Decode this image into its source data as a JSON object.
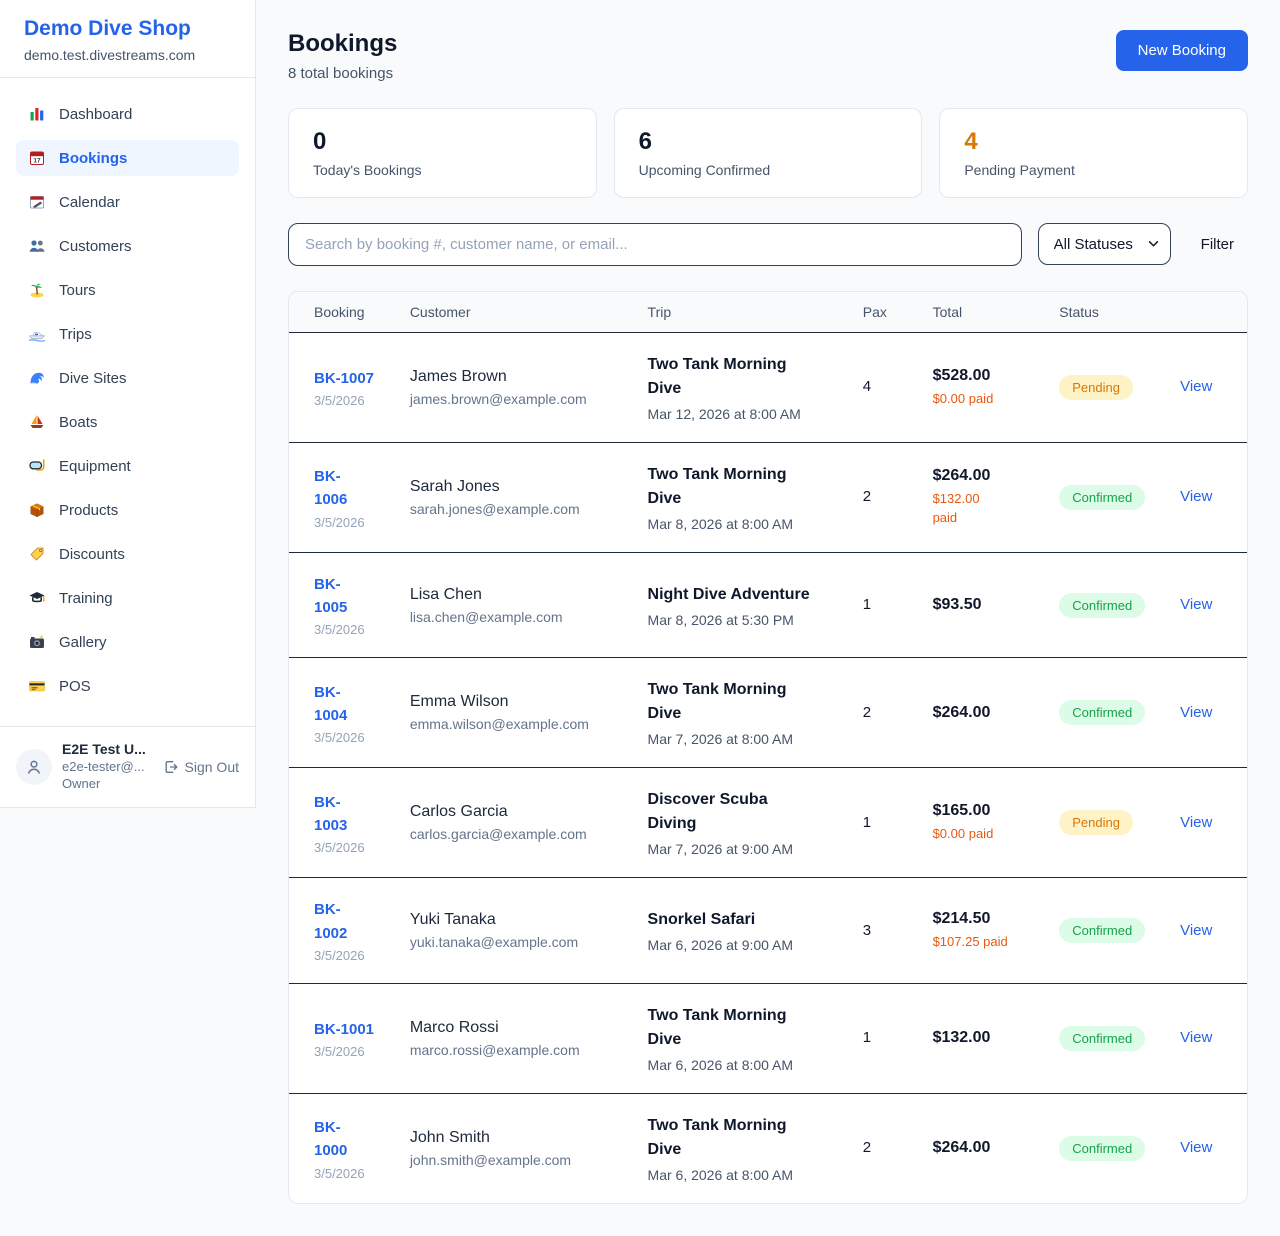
{
  "sidebar": {
    "brand": {
      "name": "Demo Dive Shop",
      "domain": "demo.test.divestreams.com"
    },
    "items": [
      {
        "label": "Dashboard",
        "icon": "bar-chart-icon",
        "active": false
      },
      {
        "label": "Bookings",
        "icon": "calendar-date-icon",
        "active": true
      },
      {
        "label": "Calendar",
        "icon": "calendar-icon",
        "active": false
      },
      {
        "label": "Customers",
        "icon": "people-icon",
        "active": false
      },
      {
        "label": "Tours",
        "icon": "island-icon",
        "active": false
      },
      {
        "label": "Trips",
        "icon": "speedboat-icon",
        "active": false
      },
      {
        "label": "Dive Sites",
        "icon": "wave-icon",
        "active": false
      },
      {
        "label": "Boats",
        "icon": "sailboat-icon",
        "active": false
      },
      {
        "label": "Equipment",
        "icon": "diving-mask-icon",
        "active": false
      },
      {
        "label": "Products",
        "icon": "package-icon",
        "active": false
      },
      {
        "label": "Discounts",
        "icon": "tag-icon",
        "active": false
      },
      {
        "label": "Training",
        "icon": "graduation-cap-icon",
        "active": false
      },
      {
        "label": "Gallery",
        "icon": "camera-icon",
        "active": false
      },
      {
        "label": "POS",
        "icon": "credit-card-icon",
        "active": false
      }
    ],
    "user": {
      "name": "E2E Test U...",
      "email": "e2e-tester@...",
      "role": "Owner",
      "signout_label": "Sign Out"
    }
  },
  "header": {
    "title": "Bookings",
    "subtitle": "8 total bookings",
    "new_booking_label": "New Booking"
  },
  "stats": [
    {
      "value": "0",
      "label": "Today's Bookings",
      "color": "#0f172a"
    },
    {
      "value": "6",
      "label": "Upcoming Confirmed",
      "color": "#0f172a"
    },
    {
      "value": "4",
      "label": "Pending Payment",
      "color": "#d97706"
    }
  ],
  "controls": {
    "search_placeholder": "Search by booking #, customer name, or email...",
    "status_filter_value": "All Statuses",
    "filter_label": "Filter"
  },
  "table": {
    "columns": [
      "Booking",
      "Customer",
      "Trip",
      "Pax",
      "Total",
      "Status",
      ""
    ],
    "rows": [
      {
        "id": "BK-1007",
        "date": "3/5/2026",
        "customer": "James Brown",
        "email": "james.brown@example.com",
        "trip": "Two Tank Morning\nDive",
        "trip_date": "Mar 12, 2026 at 8:00 AM",
        "pax": "4",
        "total": "$528.00",
        "paid": "$0.00 paid",
        "status": "Pending",
        "action": "View"
      },
      {
        "id": "BK-\n1006",
        "date": "3/5/2026",
        "customer": "Sarah Jones",
        "email": "sarah.jones@example.com",
        "trip": "Two Tank Morning\nDive",
        "trip_date": "Mar 8, 2026 at 8:00 AM",
        "pax": "2",
        "total": "$264.00",
        "paid": "$132.00\npaid",
        "status": "Confirmed",
        "action": "View"
      },
      {
        "id": "BK-\n1005",
        "date": "3/5/2026",
        "customer": "Lisa Chen",
        "email": "lisa.chen@example.com",
        "trip": "Night Dive Adventure",
        "trip_date": "Mar 8, 2026 at 5:30 PM",
        "pax": "1",
        "total": "$93.50",
        "paid": "",
        "status": "Confirmed",
        "action": "View"
      },
      {
        "id": "BK-\n1004",
        "date": "3/5/2026",
        "customer": "Emma Wilson",
        "email": "emma.wilson@example.com",
        "trip": "Two Tank Morning\nDive",
        "trip_date": "Mar 7, 2026 at 8:00 AM",
        "pax": "2",
        "total": "$264.00",
        "paid": "",
        "status": "Confirmed",
        "action": "View"
      },
      {
        "id": "BK-\n1003",
        "date": "3/5/2026",
        "customer": "Carlos Garcia",
        "email": "carlos.garcia@example.com",
        "trip": "Discover Scuba\nDiving",
        "trip_date": "Mar 7, 2026 at 9:00 AM",
        "pax": "1",
        "total": "$165.00",
        "paid": "$0.00 paid",
        "status": "Pending",
        "action": "View"
      },
      {
        "id": "BK-\n1002",
        "date": "3/5/2026",
        "customer": "Yuki Tanaka",
        "email": "yuki.tanaka@example.com",
        "trip": "Snorkel Safari",
        "trip_date": "Mar 6, 2026 at 9:00 AM",
        "pax": "3",
        "total": "$214.50",
        "paid": "$107.25 paid",
        "status": "Confirmed",
        "action": "View"
      },
      {
        "id": "BK-1001",
        "date": "3/5/2026",
        "customer": "Marco Rossi",
        "email": "marco.rossi@example.com",
        "trip": "Two Tank Morning\nDive",
        "trip_date": "Mar 6, 2026 at 8:00 AM",
        "pax": "1",
        "total": "$132.00",
        "paid": "",
        "status": "Confirmed",
        "action": "View"
      },
      {
        "id": "BK-\n1000",
        "date": "3/5/2026",
        "customer": "John Smith",
        "email": "john.smith@example.com",
        "trip": "Two Tank Morning\nDive",
        "trip_date": "Mar 6, 2026 at 8:00 AM",
        "pax": "2",
        "total": "$264.00",
        "paid": "",
        "status": "Confirmed",
        "action": "View"
      }
    ]
  },
  "colors": {
    "accent": "#2563eb",
    "pending_bg": "#fef3c7",
    "pending_text": "#d97706",
    "confirmed_bg": "#dcfce7",
    "confirmed_text": "#16a34a",
    "paid_text": "#ea580c"
  }
}
